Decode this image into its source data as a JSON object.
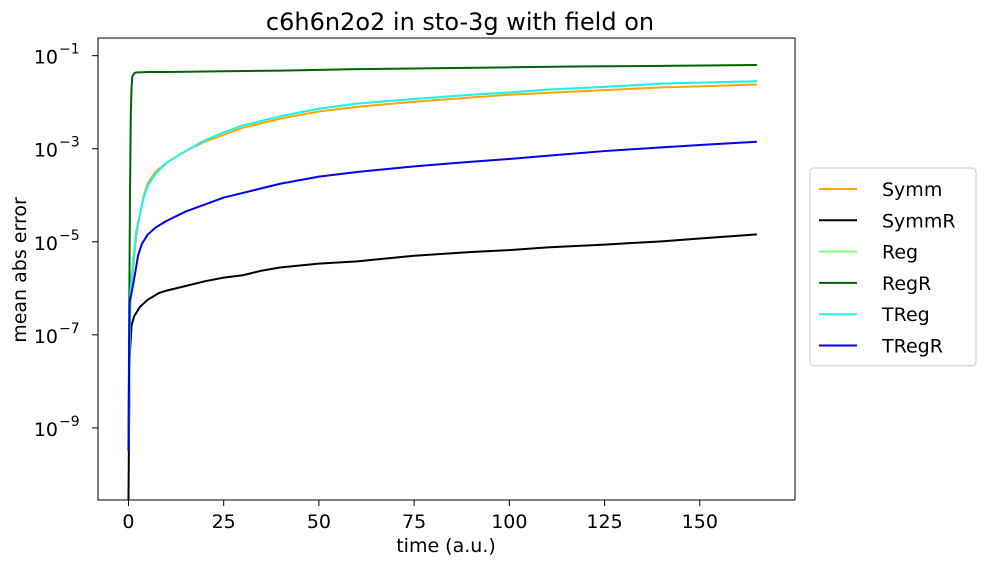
{
  "chart_data": {
    "type": "line",
    "title": "c6h6n2o2 in sto-3g with field on",
    "xlabel": "time (a.u.)",
    "ylabel": "mean abs error",
    "xscale": "linear",
    "yscale": "log",
    "xlim": [
      -8,
      175
    ],
    "ylim_log10": [
      -10.55,
      -0.62
    ],
    "xticks": [
      0,
      25,
      50,
      75,
      100,
      125,
      150
    ],
    "xtick_labels": [
      "0",
      "25",
      "50",
      "75",
      "100",
      "125",
      "150"
    ],
    "yticks_log10": [
      -9,
      -7,
      -5,
      -3,
      -1
    ],
    "ytick_labels": [
      "10",
      "10",
      "10",
      "10",
      "10"
    ],
    "ytick_exponents": [
      "−9",
      "−7",
      "−5",
      "−3",
      "−1"
    ],
    "grid": false,
    "legend_position": "right, outside plot",
    "series": [
      {
        "name": "Symm",
        "color": "#ffa500",
        "x": [
          0,
          0.5,
          1,
          2,
          3,
          4,
          5,
          7,
          10,
          15,
          20,
          25,
          30,
          35,
          40,
          50,
          60,
          75,
          90,
          100,
          110,
          125,
          140,
          150,
          165
        ],
        "log10_y": [
          -9.5,
          -6.3,
          -5.8,
          -4.9,
          -4.4,
          -4.0,
          -3.75,
          -3.5,
          -3.3,
          -3.05,
          -2.85,
          -2.7,
          -2.55,
          -2.45,
          -2.35,
          -2.2,
          -2.1,
          -1.99,
          -1.9,
          -1.84,
          -1.8,
          -1.74,
          -1.68,
          -1.66,
          -1.62
        ]
      },
      {
        "name": "SymmR",
        "color": "#000000",
        "x": [
          0,
          0.3,
          0.8,
          1.5,
          3,
          5,
          8,
          10,
          15,
          20,
          25,
          30,
          35,
          40,
          50,
          60,
          75,
          90,
          100,
          110,
          125,
          140,
          150,
          165
        ],
        "log10_y": [
          -10.55,
          -7.5,
          -6.8,
          -6.6,
          -6.4,
          -6.25,
          -6.1,
          -6.05,
          -5.95,
          -5.85,
          -5.77,
          -5.72,
          -5.62,
          -5.55,
          -5.47,
          -5.42,
          -5.3,
          -5.22,
          -5.18,
          -5.12,
          -5.06,
          -4.99,
          -4.93,
          -4.84
        ]
      },
      {
        "name": "Reg",
        "color": "#80ff80",
        "x": [
          0,
          0.5,
          1,
          2,
          3,
          4,
          5,
          7,
          10,
          15,
          20,
          25,
          30,
          35,
          40,
          50,
          60,
          75,
          90,
          100,
          110,
          125,
          140,
          150,
          165
        ],
        "log10_y": [
          -9.5,
          -6.1,
          -5.6,
          -4.8,
          -4.4,
          -4.05,
          -3.8,
          -3.55,
          -3.3,
          -3.05,
          -2.82,
          -2.65,
          -2.5,
          -2.4,
          -2.3,
          -2.14,
          -2.03,
          -1.93,
          -1.84,
          -1.79,
          -1.73,
          -1.67,
          -1.6,
          -1.58,
          -1.55
        ]
      },
      {
        "name": "RegR",
        "color": "#006400",
        "x": [
          0,
          0.2,
          0.4,
          0.6,
          0.8,
          1,
          1.5,
          2,
          3,
          5,
          10,
          20,
          40,
          60,
          80,
          100,
          120,
          140,
          165
        ],
        "log10_y": [
          -9.5,
          -6.5,
          -4.0,
          -2.3,
          -1.7,
          -1.45,
          -1.38,
          -1.36,
          -1.36,
          -1.35,
          -1.35,
          -1.34,
          -1.32,
          -1.29,
          -1.27,
          -1.25,
          -1.23,
          -1.22,
          -1.2
        ]
      },
      {
        "name": "TReg",
        "color": "#20f0f0",
        "x": [
          0,
          0.5,
          1,
          2,
          3,
          4,
          5,
          7,
          10,
          15,
          20,
          25,
          30,
          35,
          40,
          50,
          60,
          75,
          90,
          100,
          110,
          125,
          140,
          150,
          165
        ],
        "log10_y": [
          -9.5,
          -6.1,
          -5.6,
          -4.8,
          -4.4,
          -4.05,
          -3.8,
          -3.55,
          -3.3,
          -3.05,
          -2.82,
          -2.65,
          -2.5,
          -2.4,
          -2.3,
          -2.14,
          -2.03,
          -1.93,
          -1.84,
          -1.79,
          -1.73,
          -1.67,
          -1.6,
          -1.58,
          -1.55
        ]
      },
      {
        "name": "TRegR",
        "color": "#0000ee",
        "x": [
          0,
          0.3,
          0.8,
          1.5,
          2.5,
          3.5,
          5,
          7,
          10,
          15,
          20,
          25,
          30,
          35,
          40,
          50,
          60,
          75,
          90,
          100,
          110,
          125,
          140,
          150,
          165
        ],
        "log10_y": [
          -9.5,
          -6.3,
          -6.1,
          -5.8,
          -5.3,
          -5.05,
          -4.85,
          -4.7,
          -4.55,
          -4.35,
          -4.2,
          -4.05,
          -3.95,
          -3.85,
          -3.75,
          -3.6,
          -3.5,
          -3.38,
          -3.28,
          -3.22,
          -3.15,
          -3.05,
          -2.97,
          -2.92,
          -2.85
        ]
      }
    ]
  }
}
